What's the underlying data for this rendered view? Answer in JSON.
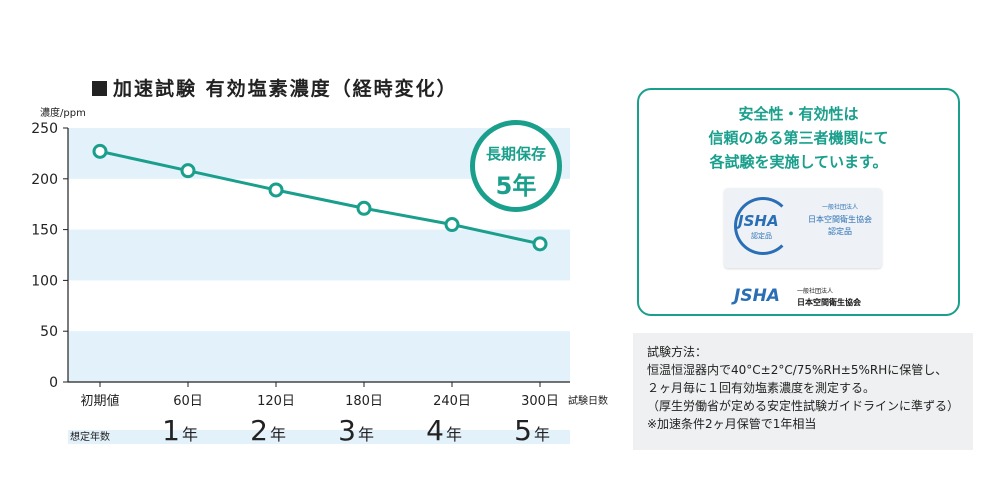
{
  "title": "加速試験 有効塩素濃度（経時変化）",
  "chart_data": {
    "type": "line",
    "ylabel": "濃度/ppm",
    "xlabel": "試験日数",
    "ylim": [
      0,
      250
    ],
    "yticks": [
      0,
      50,
      100,
      150,
      200,
      250
    ],
    "categories": [
      "初期値",
      "60日",
      "120日",
      "180日",
      "240日",
      "300日"
    ],
    "values": [
      227,
      208,
      189,
      171,
      155,
      136
    ],
    "grid": "alternating bands",
    "line_color": "#1a9f8c",
    "band_color": "#e3f1fb",
    "year_row_label": "想定年数",
    "years": [
      {
        "num": "1",
        "unit": "年"
      },
      {
        "num": "2",
        "unit": "年"
      },
      {
        "num": "3",
        "unit": "年"
      },
      {
        "num": "4",
        "unit": "年"
      },
      {
        "num": "5",
        "unit": "年"
      }
    ]
  },
  "badge": {
    "line1": "長期保存",
    "line2": "5年"
  },
  "info": {
    "line1": "安全性・有効性は",
    "line2": "信頼のある第三者機関にて",
    "line3": "各試験を実施しています。",
    "cert_logo": "JSHA",
    "cert_sub": "認定品",
    "cert_org_small": "一般社団法人",
    "cert_org": "日本空間衛生協会",
    "cert_label": "認定品",
    "footer_logo": "JSHA",
    "footer_org_small": "一般社団法人",
    "footer_org": "日本空間衛生協会"
  },
  "method": {
    "heading": "試験方法：",
    "line1": "恒温恒湿器内で40°C±2°C/75%RH±5%RHに保管し、",
    "line2": "２ヶ月毎に１回有効塩素濃度を測定する。",
    "line3": "（厚生労働省が定める安定性試験ガイドラインに準ずる）",
    "line4": "※加速条件2ヶ月保管で1年相当"
  },
  "colors": {
    "accent": "#1a9f8c",
    "brand_blue": "#2a6fb5"
  }
}
